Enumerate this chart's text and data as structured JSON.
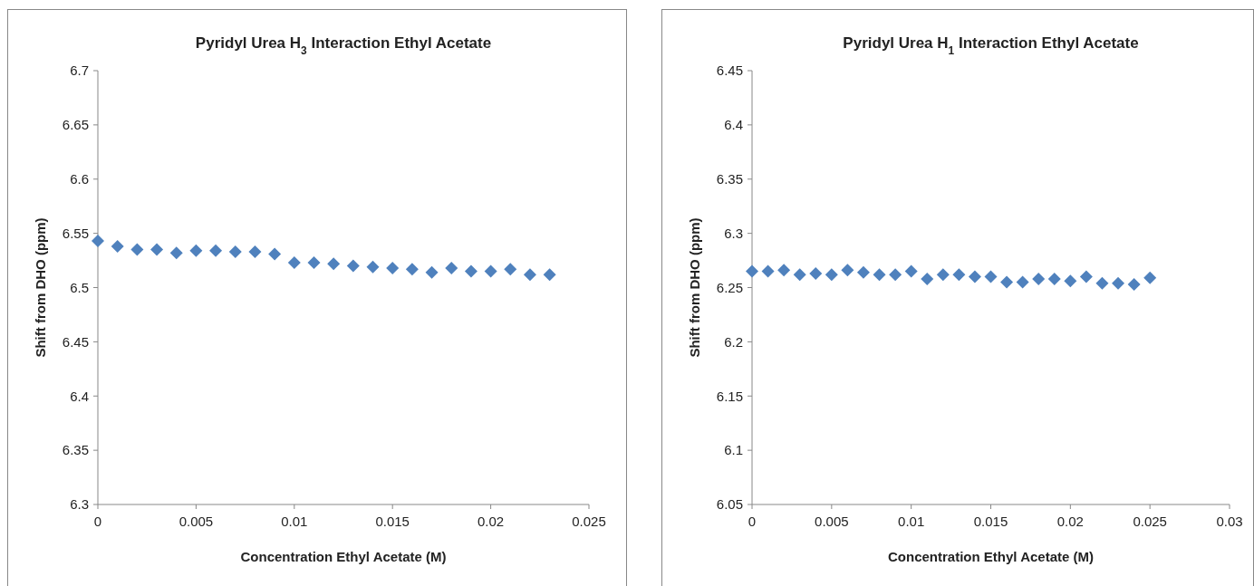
{
  "chart_data": [
    {
      "type": "scatter",
      "title": "Pyridyl Urea H$_{3}$ Interaction Ethyl Acetate",
      "xlabel": "Concentration Ethyl Acetate (M)",
      "ylabel": "Shift from DHO (ppm)",
      "x": [
        0,
        0.001,
        0.002,
        0.003,
        0.004,
        0.005,
        0.006,
        0.007,
        0.008,
        0.009,
        0.01,
        0.011,
        0.012,
        0.013,
        0.014,
        0.015,
        0.016,
        0.017,
        0.018,
        0.019,
        0.02,
        0.021,
        0.022,
        0.023
      ],
      "series": [
        {
          "color": "#4f81bd",
          "values": [
            6.543,
            6.538,
            6.535,
            6.535,
            6.532,
            6.534,
            6.534,
            6.533,
            6.533,
            6.531,
            6.523,
            6.523,
            6.522,
            6.52,
            6.519,
            6.518,
            6.517,
            6.514,
            6.518,
            6.515,
            6.515,
            6.517,
            6.512,
            6.512
          ]
        }
      ],
      "xlim": [
        0,
        0.025
      ],
      "xticks": [
        0,
        0.005,
        0.01,
        0.015,
        0.02,
        0.025
      ],
      "ylim": [
        6.3,
        6.7
      ],
      "yticks": [
        6.3,
        6.35,
        6.4,
        6.45,
        6.5,
        6.55,
        6.6,
        6.65,
        6.7
      ],
      "grid": false,
      "marker": "diamond"
    },
    {
      "type": "scatter",
      "title": "Pyridyl Urea H$_{1}$ Interaction Ethyl Acetate",
      "xlabel": "Concentration Ethyl Acetate (M)",
      "ylabel": "Shift from DHO (ppm)",
      "x": [
        0,
        0.001,
        0.002,
        0.003,
        0.004,
        0.005,
        0.006,
        0.007,
        0.008,
        0.009,
        0.01,
        0.011,
        0.012,
        0.013,
        0.014,
        0.015,
        0.016,
        0.017,
        0.018,
        0.019,
        0.02,
        0.021,
        0.022,
        0.023,
        0.024,
        0.025
      ],
      "series": [
        {
          "color": "#4f81bd",
          "values": [
            6.265,
            6.265,
            6.266,
            6.262,
            6.263,
            6.262,
            6.266,
            6.264,
            6.262,
            6.262,
            6.265,
            6.258,
            6.262,
            6.262,
            6.26,
            6.26,
            6.255,
            6.255,
            6.258,
            6.258,
            6.256,
            6.26,
            6.254,
            6.254,
            6.253,
            6.259
          ]
        }
      ],
      "xlim": [
        0,
        0.03
      ],
      "xticks": [
        0,
        0.005,
        0.01,
        0.015,
        0.02,
        0.025,
        0.03
      ],
      "ylim": [
        6.05,
        6.45
      ],
      "yticks": [
        6.05,
        6.1,
        6.15,
        6.2,
        6.25,
        6.3,
        6.35,
        6.4,
        6.45
      ],
      "grid": false,
      "marker": "diamond"
    }
  ]
}
